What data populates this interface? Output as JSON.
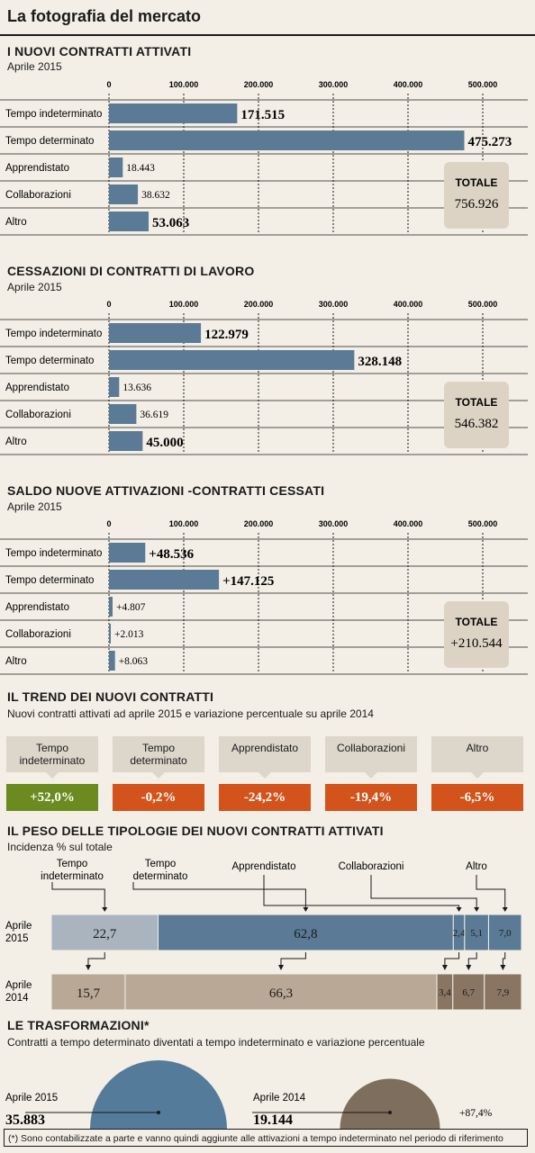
{
  "page_title": "La fotografia del mercato",
  "colors": {
    "bar": "#5a7a96",
    "totale_bg": "#dcd3c4",
    "green": "#6b8a1f",
    "orange": "#d2541c",
    "row2015": "#a9b4bf",
    "row2014": "#b9a896",
    "dark2014": "#8a7563",
    "circle2015": "#557b9b",
    "circle2014": "#7d6e5d"
  },
  "sections": {
    "attivati": {
      "title": "I NUOVI CONTRATTI ATTIVATI",
      "subtitle": "Aprile 2015",
      "totale_label": "TOTALE",
      "totale_value": "756.926"
    },
    "cessazioni": {
      "title": "CESSAZIONI DI CONTRATTI DI LAVORO",
      "subtitle": "Aprile 2015",
      "totale_label": "TOTALE",
      "totale_value": "546.382"
    },
    "saldo": {
      "title": "SALDO NUOVE ATTIVAZIONI -CONTRATTI CESSATI",
      "subtitle": "Aprile 2015",
      "totale_label": "TOTALE",
      "totale_value": "+210.544"
    },
    "trend": {
      "title": "IL TREND DEI NUOVI CONTRATTI",
      "subtitle": "Nuovi contratti attivati ad aprile 2015 e variazione percentuale su aprile 2014"
    },
    "peso": {
      "title": "IL PESO DELLE TIPOLOGIE DEI NUOVI CONTRATTI ATTIVATI",
      "subtitle": "Incidenza % sul totale"
    },
    "trasf": {
      "title": "LE TRASFORMAZIONI*",
      "subtitle": "Contratti a tempo determinato diventati a tempo indeterminato e variazione percentuale"
    }
  },
  "chart_data": [
    {
      "type": "bar",
      "id": "attivati",
      "x_ticks": [
        "0",
        "100.000",
        "200.000",
        "300.000",
        "400.000",
        "500.000"
      ],
      "xlim": [
        0,
        500000
      ],
      "categories": [
        "Tempo indeterminato",
        "Tempo determinato",
        "Apprendistato",
        "Collaborazioni",
        "Altro"
      ],
      "values": [
        171515,
        475273,
        18443,
        38632,
        53063
      ],
      "labels": [
        "171.515",
        "475.273",
        "18.443",
        "38.632",
        "53.063"
      ]
    },
    {
      "type": "bar",
      "id": "cessazioni",
      "x_ticks": [
        "0",
        "100.000",
        "200.000",
        "300.000",
        "400.000",
        "500.000"
      ],
      "xlim": [
        0,
        500000
      ],
      "categories": [
        "Tempo indeterminato",
        "Tempo determinato",
        "Apprendistato",
        "Collaborazioni",
        "Altro"
      ],
      "values": [
        122979,
        328148,
        13636,
        36619,
        45000
      ],
      "labels": [
        "122.979",
        "328.148",
        "13.636",
        "36.619",
        "45.000"
      ]
    },
    {
      "type": "bar",
      "id": "saldo",
      "x_ticks": [
        "0",
        "100.000",
        "200.000",
        "300.000",
        "400.000",
        "500.000"
      ],
      "xlim": [
        0,
        500000
      ],
      "categories": [
        "Tempo indeterminato",
        "Tempo determinato",
        "Apprendistato",
        "Collaborazioni",
        "Altro"
      ],
      "values": [
        48536,
        147125,
        4807,
        2013,
        8063
      ],
      "labels": [
        "+48.536",
        "+147.125",
        "+4.807",
        "+2.013",
        "+8.063"
      ]
    },
    {
      "type": "table",
      "id": "trend",
      "categories": [
        "Tempo indeterminato",
        "Tempo determinato",
        "Apprendistato",
        "Collaborazioni",
        "Altro"
      ],
      "values": [
        52.0,
        -0.2,
        -24.2,
        -19.4,
        -6.5
      ],
      "labels": [
        "+52,0%",
        "-0,2%",
        "-24,2%",
        "-19,4%",
        "-6,5%"
      ]
    },
    {
      "type": "bar",
      "id": "peso",
      "stacked": true,
      "categories": [
        "Tempo indeterminato",
        "Tempo determinato",
        "Apprendistato",
        "Collaborazioni",
        "Altro"
      ],
      "category_labels": [
        "Tempo\nindeterminato",
        "Tempo\ndeterminato",
        "Apprendistato",
        "Collaborazioni",
        "Altro"
      ],
      "series": [
        {
          "name": "Aprile 2015",
          "values": [
            22.7,
            62.8,
            2.4,
            5.1,
            7.0
          ],
          "labels": [
            "22,7",
            "62,8",
            "2,4",
            "5,1",
            "7,0"
          ]
        },
        {
          "name": "Aprile 2014",
          "values": [
            15.7,
            66.3,
            3.4,
            6.7,
            7.9
          ],
          "labels": [
            "15,7",
            "66,3",
            "3,4",
            "6,7",
            "7,9"
          ]
        }
      ],
      "row_labels": [
        "Aprile\n2015",
        "Aprile\n2014"
      ]
    },
    {
      "type": "pie",
      "id": "trasformazioni",
      "categories": [
        "Aprile 2015",
        "Aprile 2014"
      ],
      "values": [
        35883,
        19144
      ],
      "labels": [
        "35.883",
        "19.144"
      ],
      "variation": "+87,4%"
    }
  ],
  "footnote": "(*) Sono contabilizzate a parte e  vanno quindi aggiunte alle attivazioni a tempo indeterminato nel periodo di riferimento"
}
